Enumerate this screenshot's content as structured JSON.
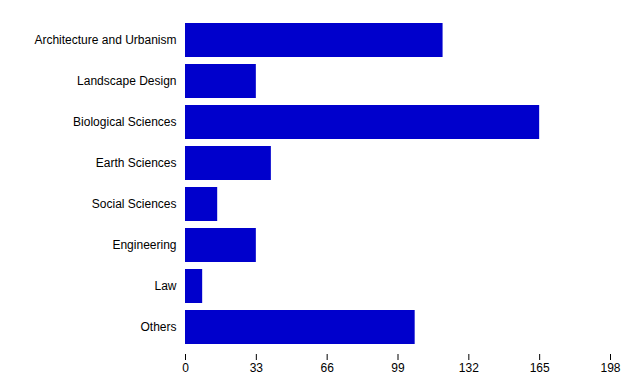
{
  "chart_data": {
    "type": "bar",
    "orientation": "horizontal",
    "categories": [
      "Architecture and Urbanism",
      "Landscape Design",
      "Biological Sciences",
      "Earth Sciences",
      "Social Sciences",
      "Engineering",
      "Law",
      "Others"
    ],
    "values": [
      120,
      33,
      165,
      40,
      15,
      33,
      8,
      107
    ],
    "color": "#0000cc",
    "xlim": [
      0,
      198
    ],
    "xticks": [
      0,
      33,
      66,
      99,
      132,
      165,
      198
    ]
  }
}
